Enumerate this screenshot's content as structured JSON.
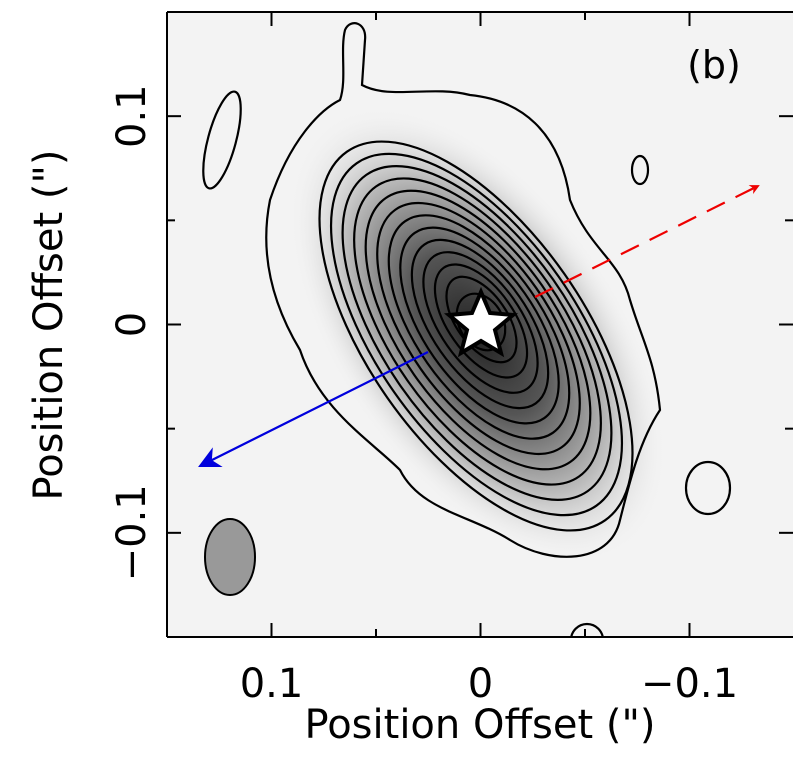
{
  "chart_data": {
    "type": "contour",
    "panel_label": "(b)",
    "x_label": "Position Offset (\")",
    "y_label": "Position Offset (\")",
    "xlim": [
      0.15,
      -0.15
    ],
    "ylim": [
      -0.15,
      0.15
    ],
    "xticks": [
      0.1,
      0,
      {
        "value": -0.1,
        "label": "−0.1"
      }
    ],
    "yticks": [
      {
        "value": -0.1,
        "label": "−0.1"
      },
      0,
      0.1
    ],
    "xminorticks": [
      0.05,
      -0.05
    ],
    "yminorticks": [
      -0.05,
      0.05
    ]
  }
}
